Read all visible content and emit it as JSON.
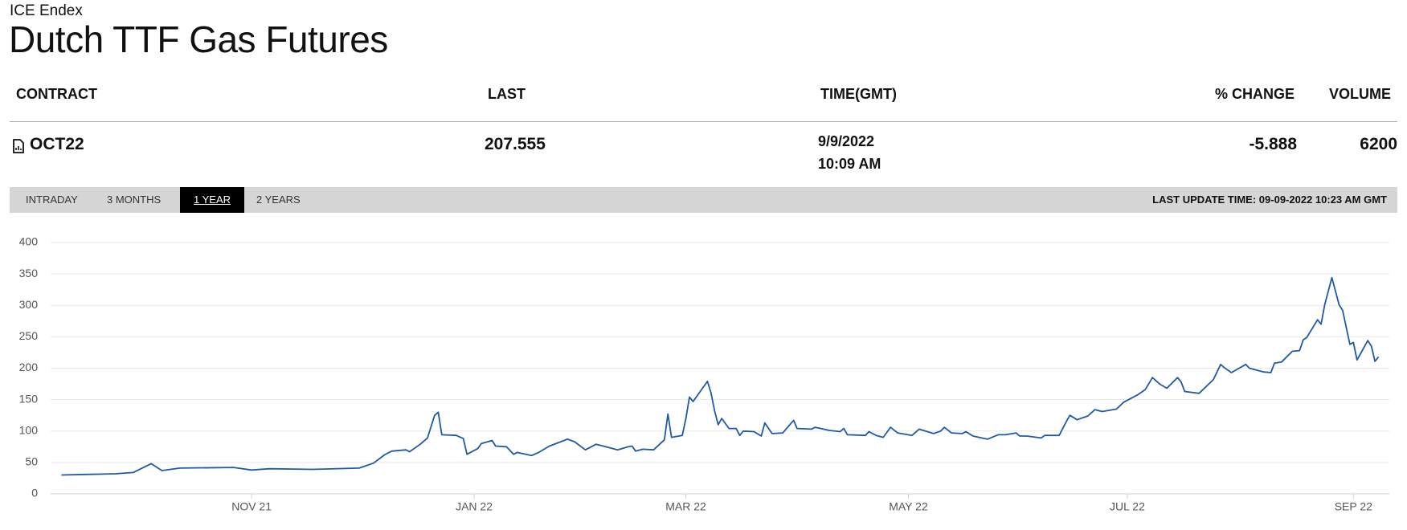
{
  "header": {
    "exchange": "ICE Endex",
    "title": "Dutch TTF Gas Futures"
  },
  "table": {
    "columns": [
      "CONTRACT",
      "LAST",
      "TIME(GMT)",
      "% CHANGE",
      "VOLUME"
    ],
    "rows": [
      [
        "OCT22",
        207.555,
        [
          "9/9/2022",
          "10:09 AM"
        ],
        -5.888,
        6200
      ]
    ]
  },
  "tabs": [
    "INTRADAY",
    "3 MONTHS",
    "1 YEAR",
    "2 YEARS"
  ],
  "active_tab": 2,
  "last_update": "LAST UPDATE TIME: 09-09-2022 10:23 AM GMT",
  "chart_data": {
    "type": "line",
    "color": "#1f5aa6",
    "grid": true,
    "x": [
      0,
      8,
      15,
      20,
      25,
      28,
      33,
      48,
      53,
      58,
      70,
      83,
      87,
      90,
      92,
      96,
      97,
      100,
      102,
      104,
      105,
      106,
      110,
      112,
      113,
      116,
      117,
      120,
      121,
      124,
      126,
      127,
      131,
      133,
      136,
      141,
      143,
      146,
      149,
      151,
      155,
      158,
      159,
      160,
      162,
      165,
      168,
      169,
      170,
      173,
      174,
      175,
      176,
      180,
      181,
      182,
      183,
      184,
      186,
      188,
      189,
      190,
      193,
      195,
      196,
      198,
      201,
      204,
      205,
      209,
      210,
      214,
      217,
      218,
      219,
      224,
      225,
      227,
      229,
      231,
      233,
      237,
      239,
      243,
      245,
      246,
      248,
      251,
      252,
      254,
      258,
      261,
      263,
      266,
      267,
      269,
      273,
      274,
      278,
      280,
      281,
      283,
      286,
      288,
      290,
      294,
      296,
      300,
      302,
      304,
      306,
      308,
      311,
      312,
      313,
      317,
      321,
      323,
      324,
      326,
      330,
      331,
      335,
      337,
      338,
      340,
      343,
      345,
      346,
      347,
      350,
      351,
      352,
      354,
      356,
      357,
      359,
      360,
      361,
      364,
      365,
      366,
      367
    ],
    "values": [
      30,
      31,
      32,
      34,
      48,
      37,
      41,
      42,
      38,
      40,
      39,
      41,
      49,
      62,
      68,
      70,
      67,
      79,
      89,
      125,
      130,
      94,
      93,
      88,
      63,
      72,
      80,
      85,
      76,
      75,
      63,
      66,
      61,
      66,
      76,
      87,
      83,
      70,
      79,
      76,
      70,
      75,
      76,
      68,
      71,
      70,
      86,
      127,
      90,
      93,
      120,
      154,
      147,
      179,
      161,
      132,
      110,
      120,
      104,
      104,
      93,
      100,
      99,
      92,
      113,
      96,
      97,
      117,
      104,
      103,
      106,
      101,
      99,
      104,
      94,
      93,
      99,
      93,
      90,
      106,
      97,
      93,
      103,
      96,
      100,
      106,
      97,
      96,
      99,
      92,
      87,
      94,
      94,
      97,
      92,
      92,
      89,
      93,
      93,
      115,
      125,
      118,
      124,
      134,
      131,
      135,
      146,
      158,
      166,
      185,
      175,
      168,
      185,
      178,
      163,
      160,
      182,
      206,
      201,
      193,
      206,
      200,
      194,
      193,
      208,
      210,
      227,
      228,
      245,
      249,
      277,
      270,
      301,
      344,
      301,
      292,
      238,
      241,
      213,
      244,
      235,
      211,
      218
    ],
    "xlim": [
      -3,
      370
    ],
    "xticks": [
      {
        "value": 53,
        "label": "NOV 21"
      },
      {
        "value": 115,
        "label": "JAN 22"
      },
      {
        "value": 174,
        "label": "MAR 22"
      },
      {
        "value": 236,
        "label": "MAY 22"
      },
      {
        "value": 297,
        "label": "JUL 22"
      },
      {
        "value": 360,
        "label": "SEP 22"
      }
    ],
    "ylim": [
      0,
      400
    ],
    "yticks": [
      0,
      50,
      100,
      150,
      200,
      250,
      300,
      350,
      400
    ]
  }
}
